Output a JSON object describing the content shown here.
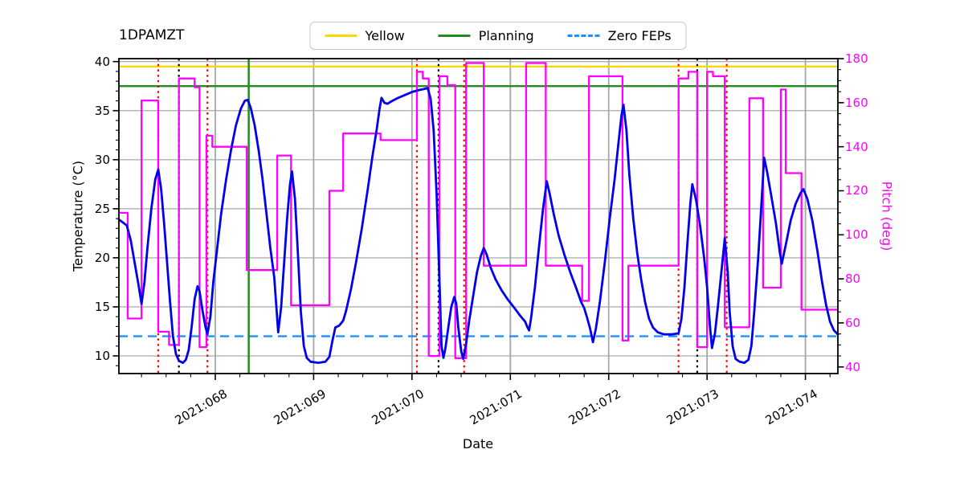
{
  "chart": {
    "title": "1DPAMZT",
    "xlabel": "Date",
    "ylabel_left": "Temperature (°C)",
    "ylabel_right": "Pitch (deg)",
    "legend": [
      {
        "label": "Yellow",
        "color": "#ffd700",
        "style": "solid"
      },
      {
        "label": "Planning",
        "color": "#228b22",
        "style": "solid"
      },
      {
        "label": "Zero FEPs",
        "color": "#1e90ff",
        "style": "dashed"
      }
    ],
    "colors": {
      "temperature_line": "#0000ee",
      "pitch_line": "#ff00ff",
      "yellow_limit": "#ffd700",
      "planning_limit": "#228b22",
      "zero_feps_line": "#1e90ff",
      "red_vline": "#ff0000",
      "black_vline": "#000000",
      "green_vline": "#228b22",
      "grid_h": "#b0b0b0",
      "grid_v": "#a6a6a6",
      "spine": "#000000",
      "right_axis_text": "#ff00ff"
    }
  },
  "chart_data": {
    "type": "line",
    "title": "1DPAMZT",
    "xlabel": "Date",
    "x_axis": {
      "range": [
        67.02,
        74.33
      ],
      "major_ticks": [
        68,
        69,
        70,
        71,
        72,
        73,
        74
      ],
      "tick_labels": [
        "2021:068",
        "2021:069",
        "2021:070",
        "2021:071",
        "2021:072",
        "2021:073",
        "2021:074"
      ],
      "minor_step": 0.25,
      "grid": true
    },
    "y_left": {
      "label": "Temperature (°C)",
      "range": [
        8.2,
        40.3
      ],
      "major_ticks": [
        10,
        15,
        20,
        25,
        30,
        35,
        40
      ],
      "tick_labels": [
        "10",
        "15",
        "20",
        "25",
        "30",
        "35",
        "40"
      ],
      "minor_step": 1,
      "grid": true
    },
    "y_right": {
      "label": "Pitch (deg)",
      "range": [
        37,
        180
      ],
      "major_ticks": [
        40,
        60,
        80,
        100,
        120,
        140,
        160,
        180
      ],
      "tick_labels": [
        "40",
        "60",
        "80",
        "100",
        "120",
        "140",
        "160",
        "180"
      ],
      "minor_step": 5,
      "grid": false
    },
    "legend_position": "upper center",
    "limit_lines": [
      {
        "name": "Yellow",
        "axis": "left",
        "value": 39.5,
        "style": "solid"
      },
      {
        "name": "Planning",
        "axis": "left",
        "value": 37.5,
        "style": "solid"
      },
      {
        "name": "Zero FEPs",
        "axis": "left",
        "value": 12.0,
        "style": "dashed"
      }
    ],
    "vlines": [
      {
        "t": 67.42,
        "kind": "red_dotted"
      },
      {
        "t": 67.92,
        "kind": "red_dotted"
      },
      {
        "t": 70.05,
        "kind": "red_dotted"
      },
      {
        "t": 70.53,
        "kind": "red_dotted"
      },
      {
        "t": 72.71,
        "kind": "red_dotted"
      },
      {
        "t": 73.2,
        "kind": "red_dotted"
      },
      {
        "t": 67.63,
        "kind": "black_dotted"
      },
      {
        "t": 70.27,
        "kind": "black_dotted"
      },
      {
        "t": 72.9,
        "kind": "black_dotted"
      },
      {
        "t": 68.34,
        "kind": "green_solid"
      }
    ],
    "series": [
      {
        "name": "1DPAMZT temperature",
        "axis": "left",
        "style": "line",
        "points": [
          [
            67.02,
            23.9
          ],
          [
            67.06,
            23.6
          ],
          [
            67.1,
            23.3
          ],
          [
            67.14,
            21.8
          ],
          [
            67.18,
            19.5
          ],
          [
            67.22,
            17.2
          ],
          [
            67.25,
            15.3
          ],
          [
            67.28,
            17.5
          ],
          [
            67.31,
            21.0
          ],
          [
            67.35,
            25.0
          ],
          [
            67.39,
            28.0
          ],
          [
            67.42,
            29.0
          ],
          [
            67.45,
            27.0
          ],
          [
            67.48,
            23.5
          ],
          [
            67.51,
            19.5
          ],
          [
            67.54,
            15.5
          ],
          [
            67.57,
            12.0
          ],
          [
            67.6,
            10.2
          ],
          [
            67.63,
            9.5
          ],
          [
            67.67,
            9.3
          ],
          [
            67.7,
            9.6
          ],
          [
            67.73,
            10.6
          ],
          [
            67.76,
            13.0
          ],
          [
            67.79,
            15.8
          ],
          [
            67.82,
            17.1
          ],
          [
            67.84,
            16.6
          ],
          [
            67.87,
            14.6
          ],
          [
            67.9,
            13.0
          ],
          [
            67.92,
            12.2
          ],
          [
            67.95,
            14.0
          ],
          [
            67.98,
            17.5
          ],
          [
            68.02,
            21.0
          ],
          [
            68.06,
            24.5
          ],
          [
            68.11,
            28.0
          ],
          [
            68.16,
            31.0
          ],
          [
            68.21,
            33.5
          ],
          [
            68.26,
            35.2
          ],
          [
            68.3,
            36.0
          ],
          [
            68.33,
            36.1
          ],
          [
            68.36,
            35.3
          ],
          [
            68.4,
            33.5
          ],
          [
            68.44,
            31.0
          ],
          [
            68.48,
            28.0
          ],
          [
            68.52,
            24.5
          ],
          [
            68.56,
            21.0
          ],
          [
            68.6,
            18.0
          ],
          [
            68.64,
            12.4
          ],
          [
            68.67,
            15.0
          ],
          [
            68.7,
            19.5
          ],
          [
            68.73,
            24.0
          ],
          [
            68.76,
            27.5
          ],
          [
            68.78,
            28.8
          ],
          [
            68.81,
            26.0
          ],
          [
            68.84,
            20.5
          ],
          [
            68.87,
            14.5
          ],
          [
            68.9,
            11.0
          ],
          [
            68.93,
            9.8
          ],
          [
            68.97,
            9.4
          ],
          [
            69.05,
            9.3
          ],
          [
            69.12,
            9.4
          ],
          [
            69.16,
            9.9
          ],
          [
            69.19,
            11.5
          ],
          [
            69.22,
            12.9
          ],
          [
            69.26,
            13.1
          ],
          [
            69.3,
            13.6
          ],
          [
            69.33,
            14.6
          ],
          [
            69.38,
            16.8
          ],
          [
            69.43,
            19.5
          ],
          [
            69.49,
            23.0
          ],
          [
            69.55,
            27.0
          ],
          [
            69.6,
            30.5
          ],
          [
            69.64,
            33.0
          ],
          [
            69.67,
            35.2
          ],
          [
            69.69,
            36.3
          ],
          [
            69.72,
            35.8
          ],
          [
            69.75,
            35.7
          ],
          [
            69.8,
            36.0
          ],
          [
            69.86,
            36.3
          ],
          [
            69.93,
            36.6
          ],
          [
            70.0,
            36.9
          ],
          [
            70.07,
            37.1
          ],
          [
            70.12,
            37.2
          ],
          [
            70.16,
            37.3
          ],
          [
            70.19,
            36.2
          ],
          [
            70.22,
            33.0
          ],
          [
            70.25,
            26.5
          ],
          [
            70.28,
            17.5
          ],
          [
            70.3,
            11.0
          ],
          [
            70.32,
            9.8
          ],
          [
            70.34,
            10.8
          ],
          [
            70.37,
            13.0
          ],
          [
            70.4,
            15.0
          ],
          [
            70.43,
            16.0
          ],
          [
            70.45,
            15.3
          ],
          [
            70.47,
            13.0
          ],
          [
            70.5,
            10.5
          ],
          [
            70.52,
            9.7
          ],
          [
            70.55,
            11.2
          ],
          [
            70.58,
            13.5
          ],
          [
            70.62,
            16.0
          ],
          [
            70.66,
            18.5
          ],
          [
            70.7,
            20.2
          ],
          [
            70.73,
            21.0
          ],
          [
            70.76,
            20.3
          ],
          [
            70.8,
            19.0
          ],
          [
            70.85,
            17.8
          ],
          [
            70.91,
            16.7
          ],
          [
            70.97,
            15.8
          ],
          [
            71.04,
            14.9
          ],
          [
            71.1,
            14.1
          ],
          [
            71.15,
            13.5
          ],
          [
            71.17,
            13.0
          ],
          [
            71.19,
            12.6
          ],
          [
            71.21,
            13.8
          ],
          [
            71.25,
            17.0
          ],
          [
            71.29,
            21.0
          ],
          [
            71.33,
            24.8
          ],
          [
            71.37,
            27.8
          ],
          [
            71.4,
            26.5
          ],
          [
            71.44,
            24.5
          ],
          [
            71.49,
            22.3
          ],
          [
            71.55,
            20.3
          ],
          [
            71.61,
            18.5
          ],
          [
            71.67,
            16.9
          ],
          [
            71.72,
            15.5
          ],
          [
            71.75,
            14.9
          ],
          [
            71.78,
            13.9
          ],
          [
            71.81,
            12.8
          ],
          [
            71.84,
            11.4
          ],
          [
            71.87,
            12.8
          ],
          [
            71.91,
            15.5
          ],
          [
            71.96,
            19.5
          ],
          [
            72.01,
            24.0
          ],
          [
            72.06,
            28.0
          ],
          [
            72.1,
            31.8
          ],
          [
            72.13,
            34.5
          ],
          [
            72.15,
            35.6
          ],
          [
            72.18,
            33.0
          ],
          [
            72.21,
            28.5
          ],
          [
            72.25,
            24.0
          ],
          [
            72.29,
            20.5
          ],
          [
            72.33,
            17.8
          ],
          [
            72.37,
            15.5
          ],
          [
            72.41,
            13.8
          ],
          [
            72.45,
            12.9
          ],
          [
            72.5,
            12.4
          ],
          [
            72.56,
            12.2
          ],
          [
            72.64,
            12.2
          ],
          [
            72.71,
            12.3
          ],
          [
            72.74,
            13.8
          ],
          [
            72.77,
            17.0
          ],
          [
            72.8,
            21.5
          ],
          [
            72.83,
            25.5
          ],
          [
            72.85,
            27.5
          ],
          [
            72.89,
            25.8
          ],
          [
            72.93,
            23.2
          ],
          [
            72.97,
            20.0
          ],
          [
            73.0,
            17.0
          ],
          [
            73.03,
            13.0
          ],
          [
            73.05,
            10.8
          ],
          [
            73.08,
            12.3
          ],
          [
            73.11,
            15.0
          ],
          [
            73.14,
            18.0
          ],
          [
            73.17,
            21.0
          ],
          [
            73.18,
            22.0
          ],
          [
            73.21,
            18.5
          ],
          [
            73.23,
            14.5
          ],
          [
            73.26,
            11.0
          ],
          [
            73.29,
            9.7
          ],
          [
            73.33,
            9.4
          ],
          [
            73.38,
            9.3
          ],
          [
            73.42,
            9.6
          ],
          [
            73.45,
            11.0
          ],
          [
            73.48,
            14.5
          ],
          [
            73.52,
            20.0
          ],
          [
            73.55,
            25.0
          ],
          [
            73.58,
            30.2
          ],
          [
            73.61,
            28.8
          ],
          [
            73.65,
            26.5
          ],
          [
            73.7,
            23.5
          ],
          [
            73.74,
            20.5
          ],
          [
            73.76,
            19.4
          ],
          [
            73.8,
            21.3
          ],
          [
            73.85,
            23.8
          ],
          [
            73.9,
            25.5
          ],
          [
            73.95,
            26.6
          ],
          [
            73.98,
            27.0
          ],
          [
            74.02,
            26.0
          ],
          [
            74.07,
            23.8
          ],
          [
            74.12,
            20.8
          ],
          [
            74.17,
            17.5
          ],
          [
            74.21,
            15.2
          ],
          [
            74.25,
            13.5
          ],
          [
            74.29,
            12.6
          ],
          [
            74.33,
            12.2
          ]
        ]
      },
      {
        "name": "Pitch",
        "axis": "right",
        "style": "step",
        "end_t": 74.33,
        "points": [
          [
            67.02,
            110
          ],
          [
            67.11,
            62
          ],
          [
            67.25,
            161
          ],
          [
            67.42,
            56
          ],
          [
            67.53,
            50
          ],
          [
            67.63,
            171
          ],
          [
            67.79,
            167
          ],
          [
            67.84,
            49
          ],
          [
            67.91,
            145
          ],
          [
            67.97,
            140
          ],
          [
            68.32,
            84
          ],
          [
            68.63,
            136
          ],
          [
            68.77,
            68
          ],
          [
            69.16,
            120
          ],
          [
            69.3,
            146
          ],
          [
            69.68,
            143
          ],
          [
            70.05,
            174
          ],
          [
            70.11,
            171
          ],
          [
            70.17,
            45
          ],
          [
            70.28,
            172
          ],
          [
            70.36,
            168
          ],
          [
            70.44,
            44
          ],
          [
            70.55,
            178
          ],
          [
            70.73,
            86
          ],
          [
            71.16,
            178
          ],
          [
            71.36,
            86
          ],
          [
            71.73,
            70
          ],
          [
            71.8,
            172
          ],
          [
            72.14,
            52
          ],
          [
            72.2,
            86
          ],
          [
            72.71,
            171
          ],
          [
            72.81,
            174
          ],
          [
            72.9,
            49
          ],
          [
            73.0,
            174
          ],
          [
            73.06,
            172
          ],
          [
            73.18,
            58
          ],
          [
            73.43,
            162
          ],
          [
            73.57,
            76
          ],
          [
            73.75,
            166
          ],
          [
            73.8,
            128
          ],
          [
            73.96,
            66
          ]
        ]
      }
    ]
  }
}
